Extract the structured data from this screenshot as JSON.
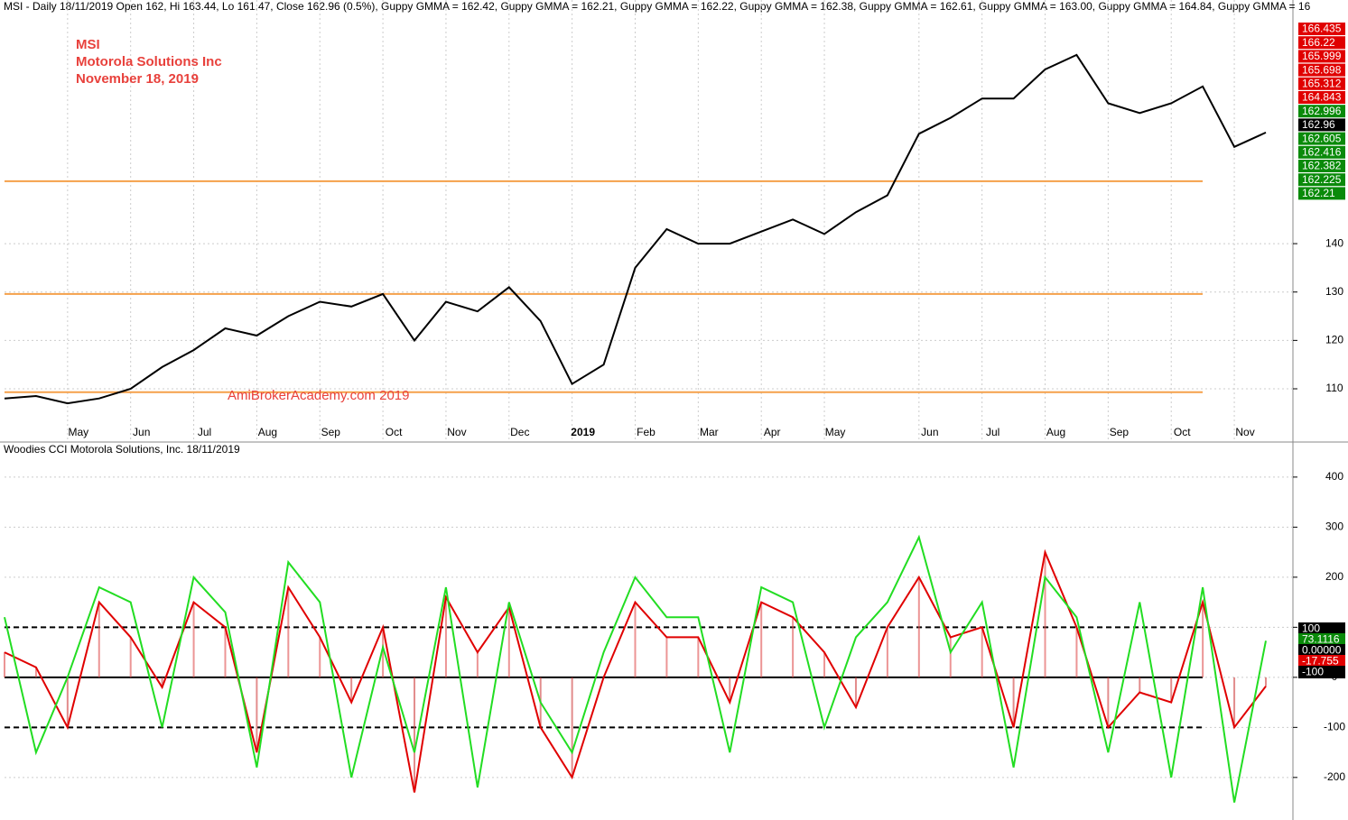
{
  "chart_data": [
    {
      "type": "line",
      "header": "MSI - Daily 18/11/2019 Open 162, Hi 163.44, Lo 161.47, Close 162.96 (0.5%), Guppy GMMA = 162.42, Guppy GMMA = 162.21, Guppy GMMA = 162.22, Guppy GMMA = 162.38, Guppy GMMA = 162.61, Guppy GMMA = 163.00, Guppy GMMA = 164.84, Guppy GMMA = 16",
      "annotations": [
        {
          "text": "MSI",
          "color": "#e8413c"
        },
        {
          "text": "Motorola Solutions Inc",
          "color": "#e8413c"
        },
        {
          "text": "November 18, 2019",
          "color": "#e8413c"
        }
      ],
      "watermark": "AmiBrokerAcademy.com   2019",
      "categories": [
        null,
        null,
        "May",
        null,
        "Jun",
        null,
        "Jul",
        null,
        "Aug",
        null,
        "Sep",
        null,
        "Oct",
        null,
        "Nov",
        null,
        "Dec",
        null,
        "2019",
        null,
        "Feb",
        null,
        "Mar",
        null,
        "Apr",
        null,
        "May",
        null,
        null,
        "Jun",
        null,
        "Jul",
        null,
        "Aug",
        null,
        "Sep",
        null,
        "Oct",
        null,
        "Nov",
        null
      ],
      "series": [
        {
          "color": "#000000",
          "values": [
            108,
            108.5,
            107,
            108,
            110,
            114.5,
            118,
            122.5,
            121,
            125,
            128,
            127,
            129.6,
            120,
            128,
            126,
            131,
            124,
            111,
            115,
            135,
            143,
            140,
            140,
            142.5,
            145,
            142,
            146.5,
            150,
            162.7,
            166,
            170,
            170,
            176,
            179,
            169,
            167,
            169,
            172.5,
            160,
            162.96
          ]
        }
      ],
      "hlines": [
        {
          "value": 152.9,
          "color": "#f5a04a",
          "dashed": false
        },
        {
          "value": 129.6,
          "color": "#f5a04a",
          "dashed": false
        },
        {
          "value": 109.3,
          "color": "#f5a04a",
          "dashed": false
        }
      ],
      "ylim": [
        99,
        187
      ],
      "yticks": [
        110,
        120,
        130,
        140
      ],
      "grid": true,
      "badges": [
        {
          "label": "166.435",
          "color": "#e00000"
        },
        {
          "label": "166.22",
          "color": "#e00000"
        },
        {
          "label": "165.999",
          "color": "#e00000"
        },
        {
          "label": "165.698",
          "color": "#e00000"
        },
        {
          "label": "165.312",
          "color": "#e00000"
        },
        {
          "label": "164.843",
          "color": "#e00000"
        },
        {
          "label": "162.996",
          "color": "#0a8a0a"
        },
        {
          "label": "162.96",
          "color": "#000000"
        },
        {
          "label": "162.605",
          "color": "#0a8a0a"
        },
        {
          "label": "162.416",
          "color": "#0a8a0a"
        },
        {
          "label": "162.382",
          "color": "#0a8a0a"
        },
        {
          "label": "162.225",
          "color": "#0a8a0a"
        },
        {
          "label": "162.21",
          "color": "#0a8a0a"
        }
      ]
    },
    {
      "type": "line",
      "header": "Woodies CCI  Motorola Solutions, Inc. 18/11/2019",
      "series": [
        {
          "color": "#e00000",
          "values": [
            50,
            20,
            -100,
            150,
            80,
            -20,
            150,
            100,
            -150,
            180,
            80,
            -50,
            100,
            -230,
            160,
            50,
            140,
            -100,
            -200,
            0,
            150,
            80,
            80,
            -50,
            150,
            120,
            50,
            -60,
            100,
            200,
            80,
            100,
            -100,
            250,
            100,
            -100,
            -30,
            -50,
            150,
            -100,
            -17.755
          ],
          "histogram": true
        },
        {
          "color": "#22dd22",
          "values": [
            120,
            -150,
            0,
            180,
            150,
            -100,
            200,
            130,
            -180,
            230,
            150,
            -200,
            60,
            -150,
            180,
            -220,
            150,
            -50,
            -150,
            50,
            200,
            120,
            120,
            -150,
            180,
            150,
            -100,
            80,
            150,
            280,
            50,
            150,
            -180,
            200,
            120,
            -150,
            150,
            -200,
            180,
            -250,
            73.1116
          ],
          "histogram": false
        }
      ],
      "hlines": [
        {
          "value": 100,
          "color": "#000000",
          "dashed": true
        },
        {
          "value": -100,
          "color": "#000000",
          "dashed": true
        },
        {
          "value": 0,
          "color": "#000000",
          "dashed": false
        }
      ],
      "ylim": [
        -285,
        443
      ],
      "yticks": [
        -200,
        -100,
        0,
        100,
        200,
        300,
        400
      ],
      "grid": true,
      "badges": [
        {
          "label": "100",
          "color": "#000000"
        },
        {
          "label": "73.1116",
          "color": "#0a8a0a"
        },
        {
          "label": "0.00000",
          "color": "#000000"
        },
        {
          "label": "-17.755",
          "color": "#e00000"
        },
        {
          "label": "-100",
          "color": "#000000"
        }
      ]
    }
  ]
}
